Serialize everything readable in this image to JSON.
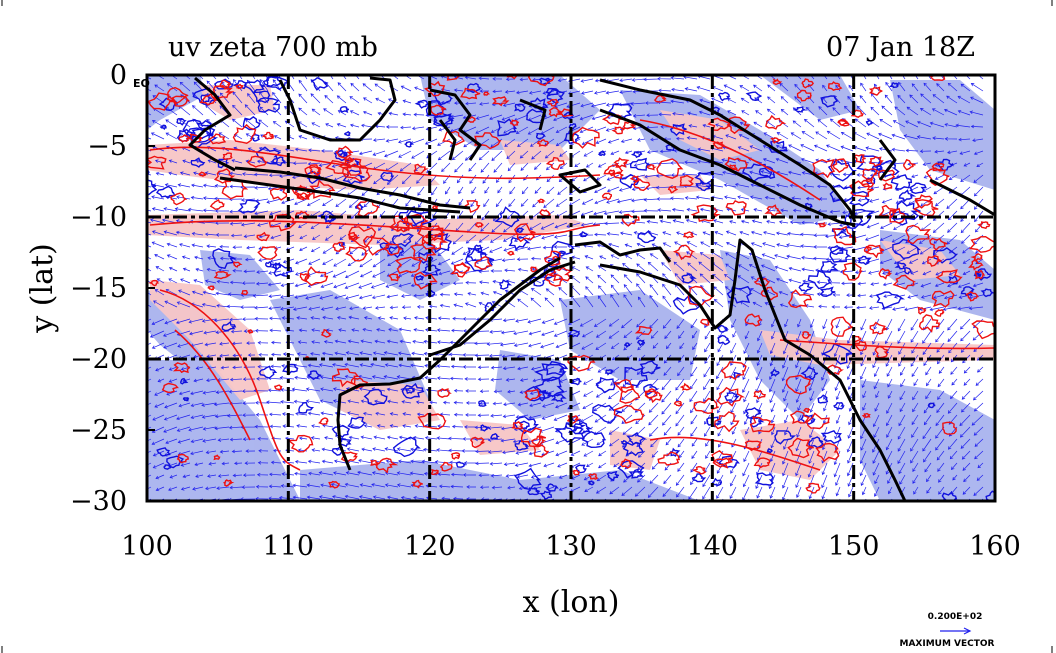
{
  "plot": {
    "title_left": "uv zeta 700 mb",
    "title_right": "07 Jan 18Z",
    "corner_label": "EQ",
    "x_axis_label": "x (lon)",
    "y_axis_label": "y (lat)",
    "vector_key_value": "0.200E+02",
    "vector_key_label": "MAXIMUM VECTOR"
  },
  "colors": {
    "positive_fill": "#f7c6c6",
    "negative_fill": "#a9b3ee",
    "positive_contour": "#ee1111",
    "negative_contour": "#1111dd",
    "vector": "#2222ee",
    "coast": "#000000"
  },
  "chart_data": {
    "type": "map",
    "x_range": [
      100,
      160
    ],
    "y_range": [
      -30,
      0
    ],
    "x_ticks": [
      100,
      110,
      120,
      130,
      140,
      150,
      160
    ],
    "y_ticks": [
      0,
      -5,
      -10,
      -15,
      -20,
      -25,
      -30
    ],
    "x_tick_labels": [
      "100",
      "110",
      "120",
      "130",
      "140",
      "150",
      "160"
    ],
    "y_tick_labels": [
      "0",
      "−5",
      "−10",
      "−15",
      "−20",
      "−25",
      "−30"
    ],
    "grid_lon": [
      110,
      120,
      130,
      140,
      150
    ],
    "grid_lat": [
      -10,
      -20
    ],
    "fields": [
      "uv",
      "zeta"
    ],
    "level": "700 mb"
  }
}
